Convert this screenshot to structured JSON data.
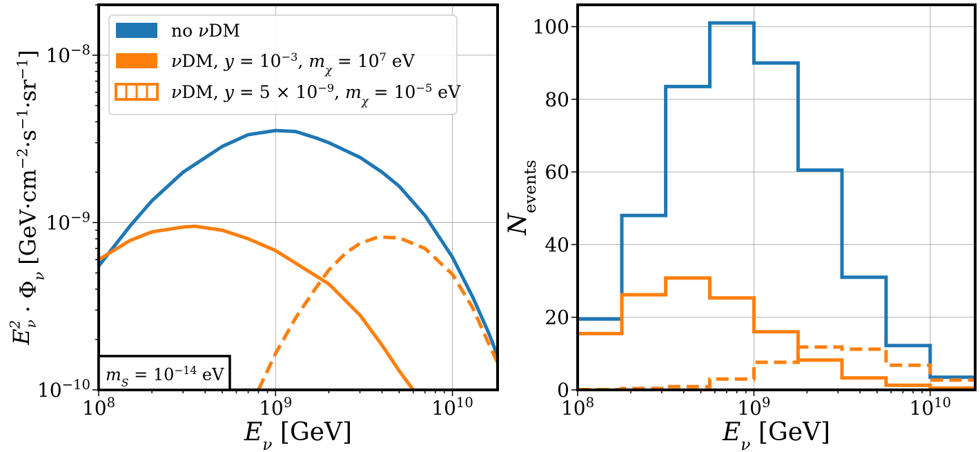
{
  "chart_data": [
    {
      "type": "line",
      "xscale": "log",
      "yscale": "log",
      "xlim": [
        100000000.0,
        18000000000.0
      ],
      "ylim": [
        1e-10,
        2e-08
      ],
      "xlabel": "E_ν [GeV]",
      "ylabel": "E_ν²·Φ_ν [GeV·cm⁻²·s⁻¹·sr⁻¹]",
      "xticks": [
        {
          "value": 100000000.0,
          "base": "10",
          "exp": "8"
        },
        {
          "value": 1000000000.0,
          "base": "10",
          "exp": "9"
        },
        {
          "value": 10000000000.0,
          "base": "10",
          "exp": "10"
        }
      ],
      "yticks": [
        {
          "value": 1e-10,
          "base": "10",
          "exp": "−10"
        },
        {
          "value": 1e-09,
          "base": "10",
          "exp": "−9"
        },
        {
          "value": 1e-08,
          "base": "10",
          "exp": "−8"
        }
      ],
      "grid": true,
      "legend_position": "top-left",
      "annotation": "m_S = 10⁻¹⁴ eV",
      "series": [
        {
          "name": "no νDM",
          "color": "#1f77b4",
          "style": "solid",
          "x": [
            100000000.0,
            150000000.0,
            200000000.0,
            300000000.0,
            500000000.0,
            700000000.0,
            1000000000.0,
            1300000000.0,
            1700000000.0,
            2000000000.0,
            3000000000.0,
            4000000000.0,
            5000000000.0,
            7000000000.0,
            10000000000.0,
            13000000000.0,
            16000000000.0,
            18000000000.0
          ],
          "y": [
            5.5e-10,
            9.5e-10,
            1.35e-09,
            2e-09,
            2.85e-09,
            3.35e-09,
            3.55e-09,
            3.5e-09,
            3.2e-09,
            3e-09,
            2.45e-09,
            2e-09,
            1.65e-09,
            1.1e-09,
            6.2e-10,
            3.6e-10,
            2.2e-10,
            1.6e-10
          ]
        },
        {
          "name": "νDM, y = 10⁻³, m_χ = 10⁷ eV",
          "color": "#ff7f0e",
          "style": "solid",
          "x": [
            100000000.0,
            150000000.0,
            200000000.0,
            300000000.0,
            350000000.0,
            500000000.0,
            700000000.0,
            1000000000.0,
            1500000000.0,
            2000000000.0,
            3000000000.0,
            4000000000.0,
            5000000000.0,
            6000000000.0
          ],
          "y": [
            6e-10,
            7.8e-10,
            8.8e-10,
            9.4e-10,
            9.5e-10,
            9e-10,
            8e-10,
            6.8e-10,
            5.2e-10,
            4.3e-10,
            2.8e-10,
            1.85e-10,
            1.3e-10,
            1e-10
          ]
        },
        {
          "name": "νDM, y = 5 × 10⁻⁹, m_χ = 10⁻⁵ eV",
          "color": "#ff7f0e",
          "style": "dashed",
          "x": [
            800000000.0,
            1000000000.0,
            1300000000.0,
            1700000000.0,
            2000000000.0,
            2500000000.0,
            3000000000.0,
            3800000000.0,
            5000000000.0,
            7000000000.0,
            10000000000.0,
            13000000000.0,
            16000000000.0,
            18000000000.0
          ],
          "y": [
            1e-10,
            1.65e-10,
            2.7e-10,
            4.1e-10,
            5.2e-10,
            6.6e-10,
            7.5e-10,
            8.2e-10,
            8.1e-10,
            7e-10,
            4.9e-10,
            3.1e-10,
            1.9e-10,
            1.45e-10
          ]
        }
      ]
    },
    {
      "type": "step",
      "xscale": "log",
      "xlim": [
        100000000.0,
        18000000000.0
      ],
      "ylim": [
        0,
        106
      ],
      "xlabel": "E_ν [GeV]",
      "ylabel": "N_events",
      "xticks": [
        {
          "value": 100000000.0,
          "base": "10",
          "exp": "8"
        },
        {
          "value": 1000000000.0,
          "base": "10",
          "exp": "9"
        },
        {
          "value": 10000000000.0,
          "base": "10",
          "exp": "10"
        }
      ],
      "yticks": [
        0,
        20,
        40,
        60,
        80,
        100
      ],
      "grid": true,
      "bin_edges": [
        100000000.0,
        178000000.0,
        316000000.0,
        562000000.0,
        1000000000.0,
        1780000000.0,
        3160000000.0,
        5620000000.0,
        10000000000.0,
        18000000000.0
      ],
      "series": [
        {
          "name": "no νDM",
          "color": "#1f77b4",
          "style": "solid",
          "values": [
            19.5,
            48,
            83.5,
            101,
            90,
            60.5,
            31,
            12.2,
            3.5
          ]
        },
        {
          "name": "νDM, y = 10⁻³, m_χ = 10⁷ eV",
          "color": "#ff7f0e",
          "style": "solid",
          "values": [
            15.5,
            26.2,
            30.8,
            25.3,
            16,
            8.2,
            3.3,
            1.3,
            0.5
          ]
        },
        {
          "name": "νDM, y = 5 × 10⁻⁹, m_χ = 10⁻⁵ eV",
          "color": "#ff7f0e",
          "style": "dashed",
          "values": [
            0.1,
            0.4,
            0.9,
            3,
            7.6,
            11.8,
            11.2,
            6.8,
            2.7
          ]
        }
      ]
    }
  ],
  "legend": {
    "entries": [
      {
        "parts": [
          {
            "t": "no "
          },
          {
            "t": "ν",
            "i": true
          },
          {
            "t": "DM"
          }
        ]
      },
      {
        "parts": [
          {
            "t": "ν",
            "i": true
          },
          {
            "t": "DM, "
          },
          {
            "t": "y",
            "i": true
          },
          {
            "t": " = 10"
          },
          {
            "t": "−3",
            "sup": true
          },
          {
            "t": ", "
          },
          {
            "t": "m",
            "i": true
          },
          {
            "t": "χ",
            "i": true,
            "sub": true
          },
          {
            "t": " = 10"
          },
          {
            "t": "7",
            "sup": true
          },
          {
            "t": " eV"
          }
        ]
      },
      {
        "parts": [
          {
            "t": "ν",
            "i": true
          },
          {
            "t": "DM, "
          },
          {
            "t": "y",
            "i": true
          },
          {
            "t": " = 5 × 10"
          },
          {
            "t": "−9",
            "sup": true
          },
          {
            "t": ", "
          },
          {
            "t": "m",
            "i": true
          },
          {
            "t": "χ",
            "i": true,
            "sub": true
          },
          {
            "t": " = 10"
          },
          {
            "t": "−5",
            "sup": true
          },
          {
            "t": " eV"
          }
        ]
      }
    ]
  },
  "annotation_box": {
    "parts": [
      {
        "t": "m",
        "i": true
      },
      {
        "t": "S",
        "i": true,
        "sub": true
      },
      {
        "t": " = 10"
      },
      {
        "t": "−14",
        "sup": true
      },
      {
        "t": " eV"
      }
    ]
  },
  "left_axes_text": {
    "xlabel": [
      {
        "t": "E",
        "i": true
      },
      {
        "t": "ν",
        "i": true,
        "sub": true
      },
      {
        "t": " [GeV]"
      }
    ],
    "ylabel": [
      {
        "t": "E",
        "i": true
      },
      {
        "t": "ν",
        "i": true,
        "sub": true,
        "sup2": "2"
      },
      {
        "t": " · Φ"
      },
      {
        "t": "ν",
        "i": true,
        "sub": true
      },
      {
        "t": " [GeV·cm"
      },
      {
        "t": "−2",
        "sup": true
      },
      {
        "t": "·s"
      },
      {
        "t": "−1",
        "sup": true
      },
      {
        "t": "·sr"
      },
      {
        "t": "−1",
        "sup": true
      },
      {
        "t": "]"
      }
    ]
  },
  "right_axes_text": {
    "xlabel": [
      {
        "t": "E",
        "i": true
      },
      {
        "t": "ν",
        "i": true,
        "sub": true
      },
      {
        "t": " [GeV]"
      }
    ],
    "ylabel": [
      {
        "t": "N",
        "i": true
      },
      {
        "t": "events",
        "sub": true
      }
    ]
  }
}
